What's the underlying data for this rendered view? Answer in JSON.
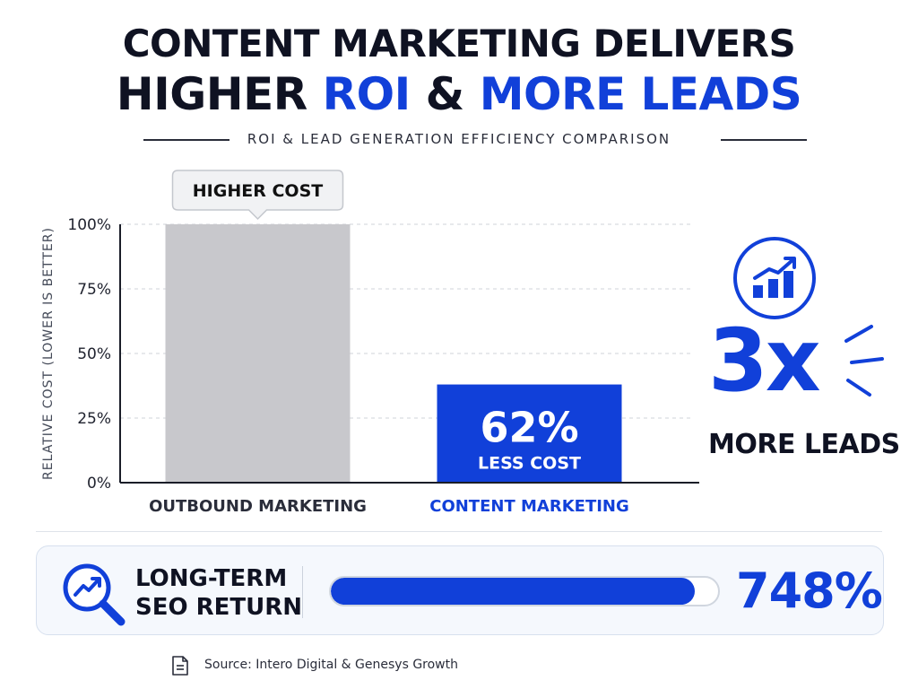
{
  "header": {
    "title_line1": "CONTENT MARKETING DELIVERS",
    "title_line2_part1": "HIGHER ",
    "title_line2_roi": "ROI",
    "title_line2_part2": " & ",
    "title_line2_leads": "MORE LEADS",
    "subtitle": "ROI & LEAD GENERATION EFFICIENCY COMPARISON"
  },
  "chart_data": {
    "type": "bar",
    "categories": [
      "OUTBOUND MARKETING",
      "CONTENT MARKETING"
    ],
    "values": [
      100,
      38
    ],
    "ylabel": "RELATIVE COST (LOWER IS BETTER)",
    "xlabel": "",
    "ylim": [
      0,
      100
    ],
    "yticks": [
      0,
      25,
      50,
      75,
      100
    ],
    "ytick_labels": [
      "0%",
      "25%",
      "50%",
      "75%",
      "100%"
    ],
    "grid": true,
    "bar_colors": [
      "#c8c8cc",
      "#1140d9"
    ],
    "category_colors": [
      "#2a2d3a",
      "#1140d9"
    ],
    "annotations": {
      "callout": "HIGHER COST",
      "bar_value": "62%",
      "bar_caption": "LESS COST"
    }
  },
  "leads": {
    "icon": "bar-chart-growth-icon",
    "value": "3x",
    "label": "MORE LEADS"
  },
  "seo": {
    "icon": "magnifier-trend-icon",
    "label_line1": "LONG-TERM",
    "label_line2": "SEO RETURN",
    "progress": 0.94,
    "value": "748%"
  },
  "source": {
    "icon": "document-icon",
    "text": "Source:  Intero Digital & Genesys Growth"
  },
  "colors": {
    "accent": "#1140d9",
    "dark": "#0f1222",
    "gray_bar": "#c8c8cc"
  }
}
